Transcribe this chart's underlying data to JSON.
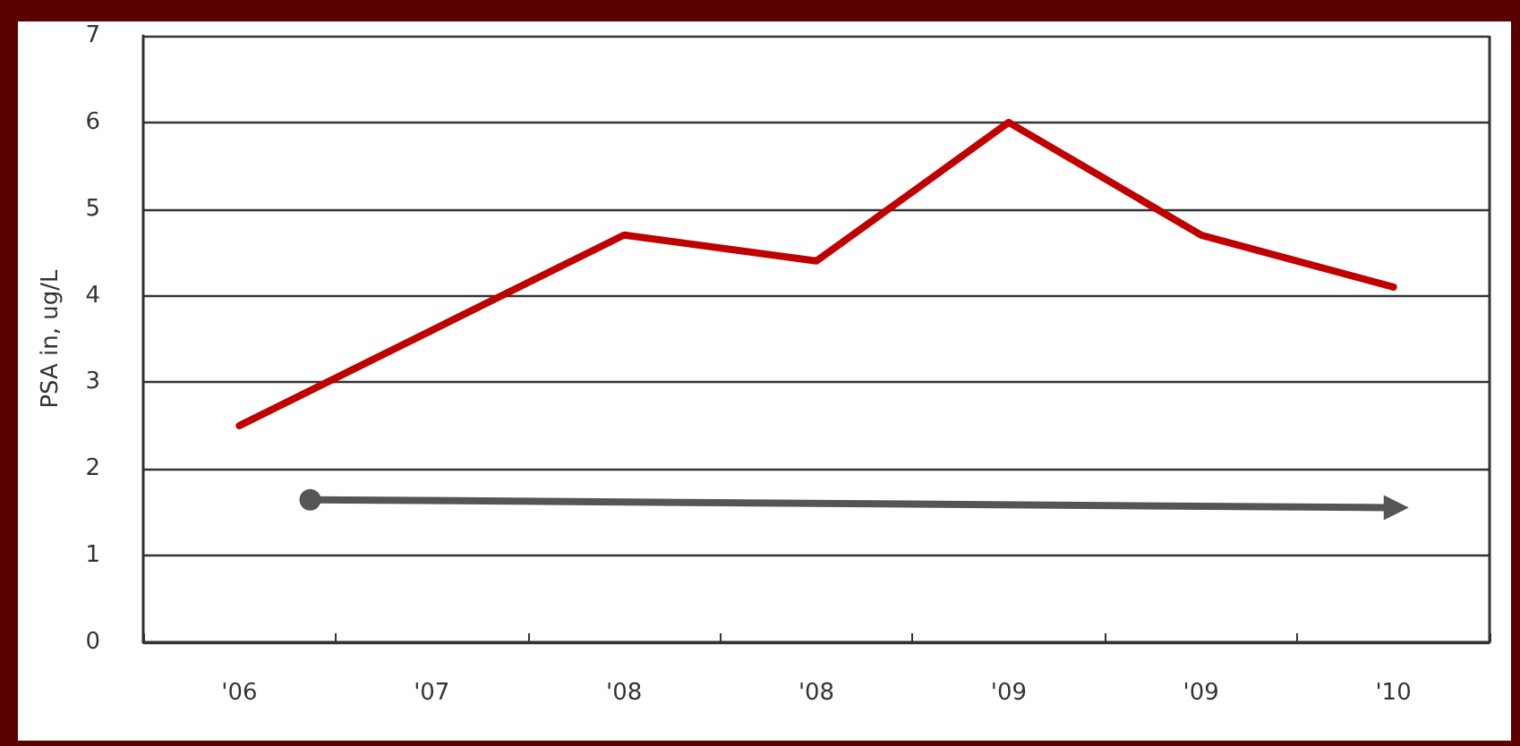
{
  "chart_data": {
    "type": "line",
    "ylabel": "PSA in, ug/L",
    "categories": [
      "'06",
      "'07",
      "'08",
      "'08",
      "'09",
      "'09",
      "'10"
    ],
    "series": [
      {
        "color": "#c00000",
        "values": [
          2.5,
          3.6,
          4.7,
          4.4,
          6.0,
          4.7,
          4.1
        ]
      }
    ],
    "ylim": [
      0,
      7
    ],
    "yticks": [
      0,
      1,
      2,
      3,
      4,
      5,
      6,
      7
    ],
    "grid": "y",
    "marker": "none",
    "line_style": "solid"
  }
}
